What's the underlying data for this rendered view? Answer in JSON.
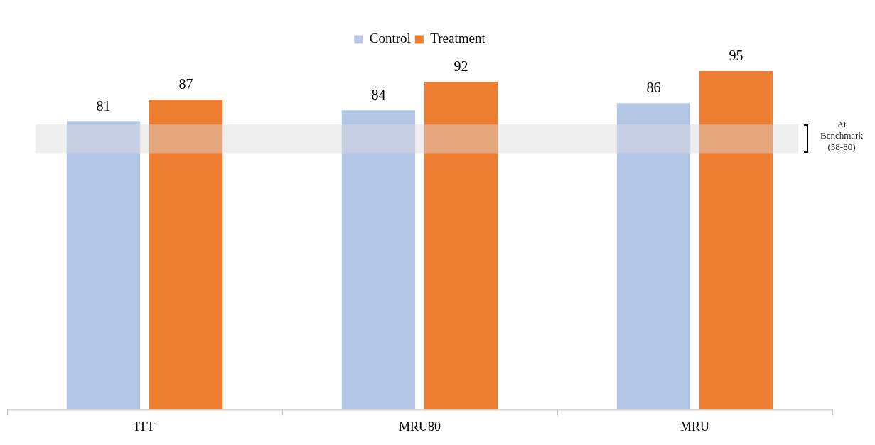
{
  "chart_data": {
    "type": "bar",
    "categories": [
      "ITT",
      "MRU80",
      "MRU"
    ],
    "series": [
      {
        "name": "Control",
        "color": "#b4c7e7",
        "values": [
          81,
          84,
          86
        ]
      },
      {
        "name": "Treatment",
        "color": "#ed7d31",
        "values": [
          87,
          92,
          95
        ]
      }
    ],
    "tick_labels": "x",
    "data_labels": true,
    "grid": false,
    "legend": "top",
    "bands": [
      {
        "axis": "y",
        "from": 72,
        "to": 80,
        "label": "At Benchmark (58-80)",
        "color": "#d9d9d9"
      }
    ]
  }
}
